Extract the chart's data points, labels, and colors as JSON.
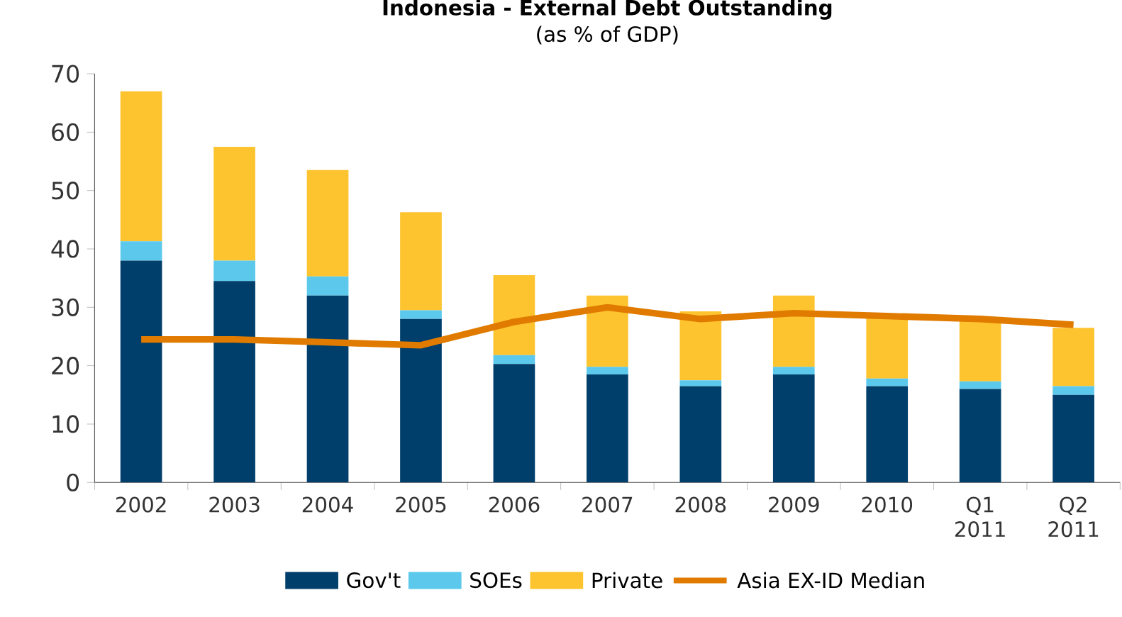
{
  "chart_data": {
    "type": "bar",
    "title": "Indonesia - External Debt Outstanding",
    "subtitle": "(as % of GDP)",
    "categories": [
      "2002",
      "2003",
      "2004",
      "2005",
      "2006",
      "2007",
      "2008",
      "2009",
      "2010",
      "Q1 2011",
      "Q2 2011"
    ],
    "stacked": true,
    "ylim": [
      0,
      70
    ],
    "yticks": [
      0,
      10,
      20,
      30,
      40,
      50,
      60,
      70
    ],
    "legend": "bottom",
    "marker": "none",
    "series": [
      {
        "name": "Gov't",
        "color": "#003f6b",
        "values": [
          38,
          34.5,
          32,
          28,
          20.3,
          18.5,
          16.5,
          18.5,
          16.5,
          16,
          15
        ]
      },
      {
        "name": "SOEs",
        "color": "#5bc8ec",
        "values": [
          3.3,
          3.5,
          3.3,
          1.5,
          1.5,
          1.3,
          1,
          1.3,
          1.3,
          1.3,
          1.5
        ]
      },
      {
        "name": "Private",
        "color": "#fdc42f",
        "values": [
          25.7,
          19.5,
          18.2,
          16.8,
          13.7,
          12.2,
          11.8,
          12.2,
          10.7,
          10.7,
          10
        ]
      },
      {
        "name": "Asia EX-ID Median",
        "type": "line",
        "color": "#e07b00",
        "values": [
          24.5,
          24.5,
          24,
          23.5,
          27.5,
          30,
          28,
          29,
          28.5,
          28,
          27
        ]
      }
    ]
  }
}
